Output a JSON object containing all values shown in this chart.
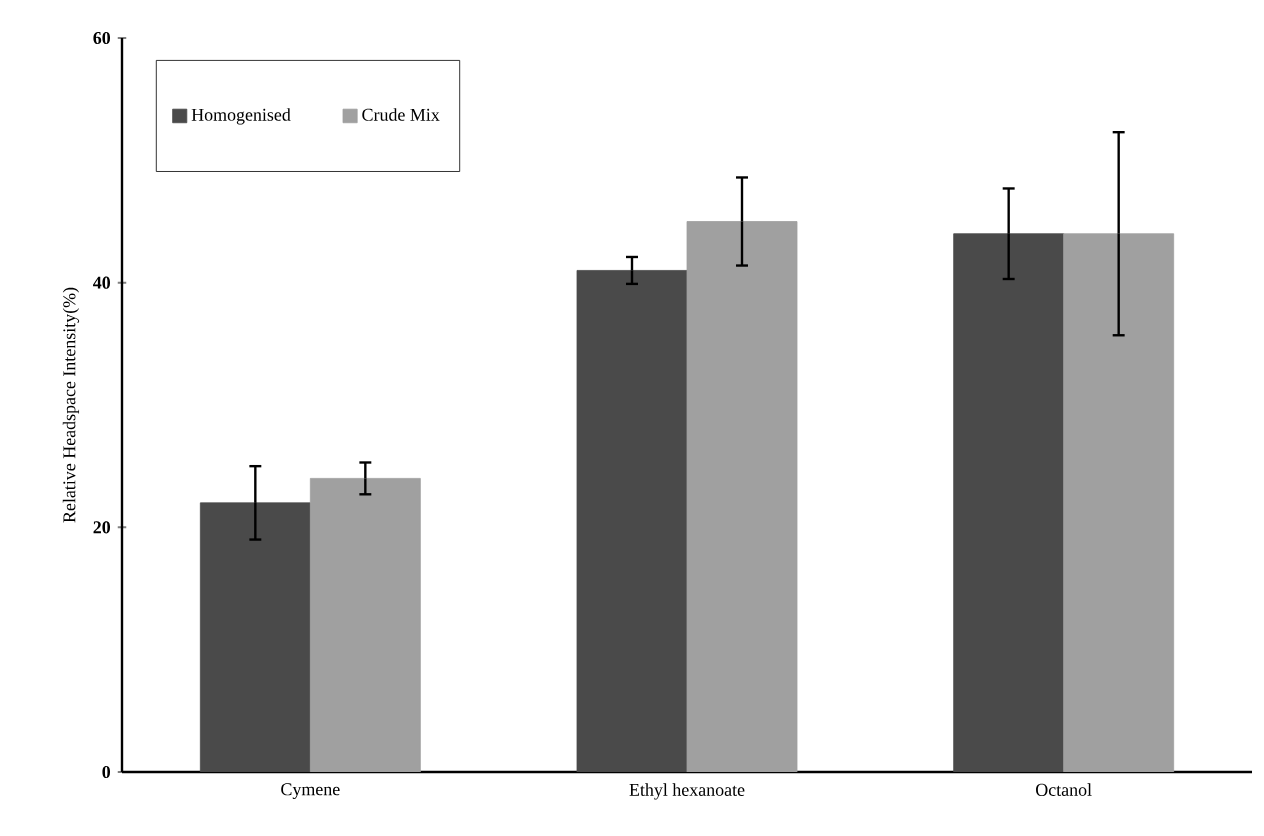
{
  "chart_data": {
    "type": "bar",
    "ylabel": "Relative Headspace Intensity(%)",
    "categories": [
      "Cymene",
      "Ethyl hexanoate",
      "Octanol"
    ],
    "series": [
      {
        "name": "Homogenised",
        "color": "#4a4a4a",
        "values": [
          22,
          41,
          44
        ],
        "errors": [
          3,
          1.1,
          3.7
        ]
      },
      {
        "name": "Crude Mix",
        "color": "#a0a0a0",
        "values": [
          24,
          45,
          44
        ],
        "errors": [
          1.3,
          3.6,
          8.3
        ]
      }
    ],
    "ylim": [
      0,
      60
    ],
    "yticks": [
      0,
      20,
      40,
      60
    ],
    "grid": false,
    "legend": "top left"
  }
}
